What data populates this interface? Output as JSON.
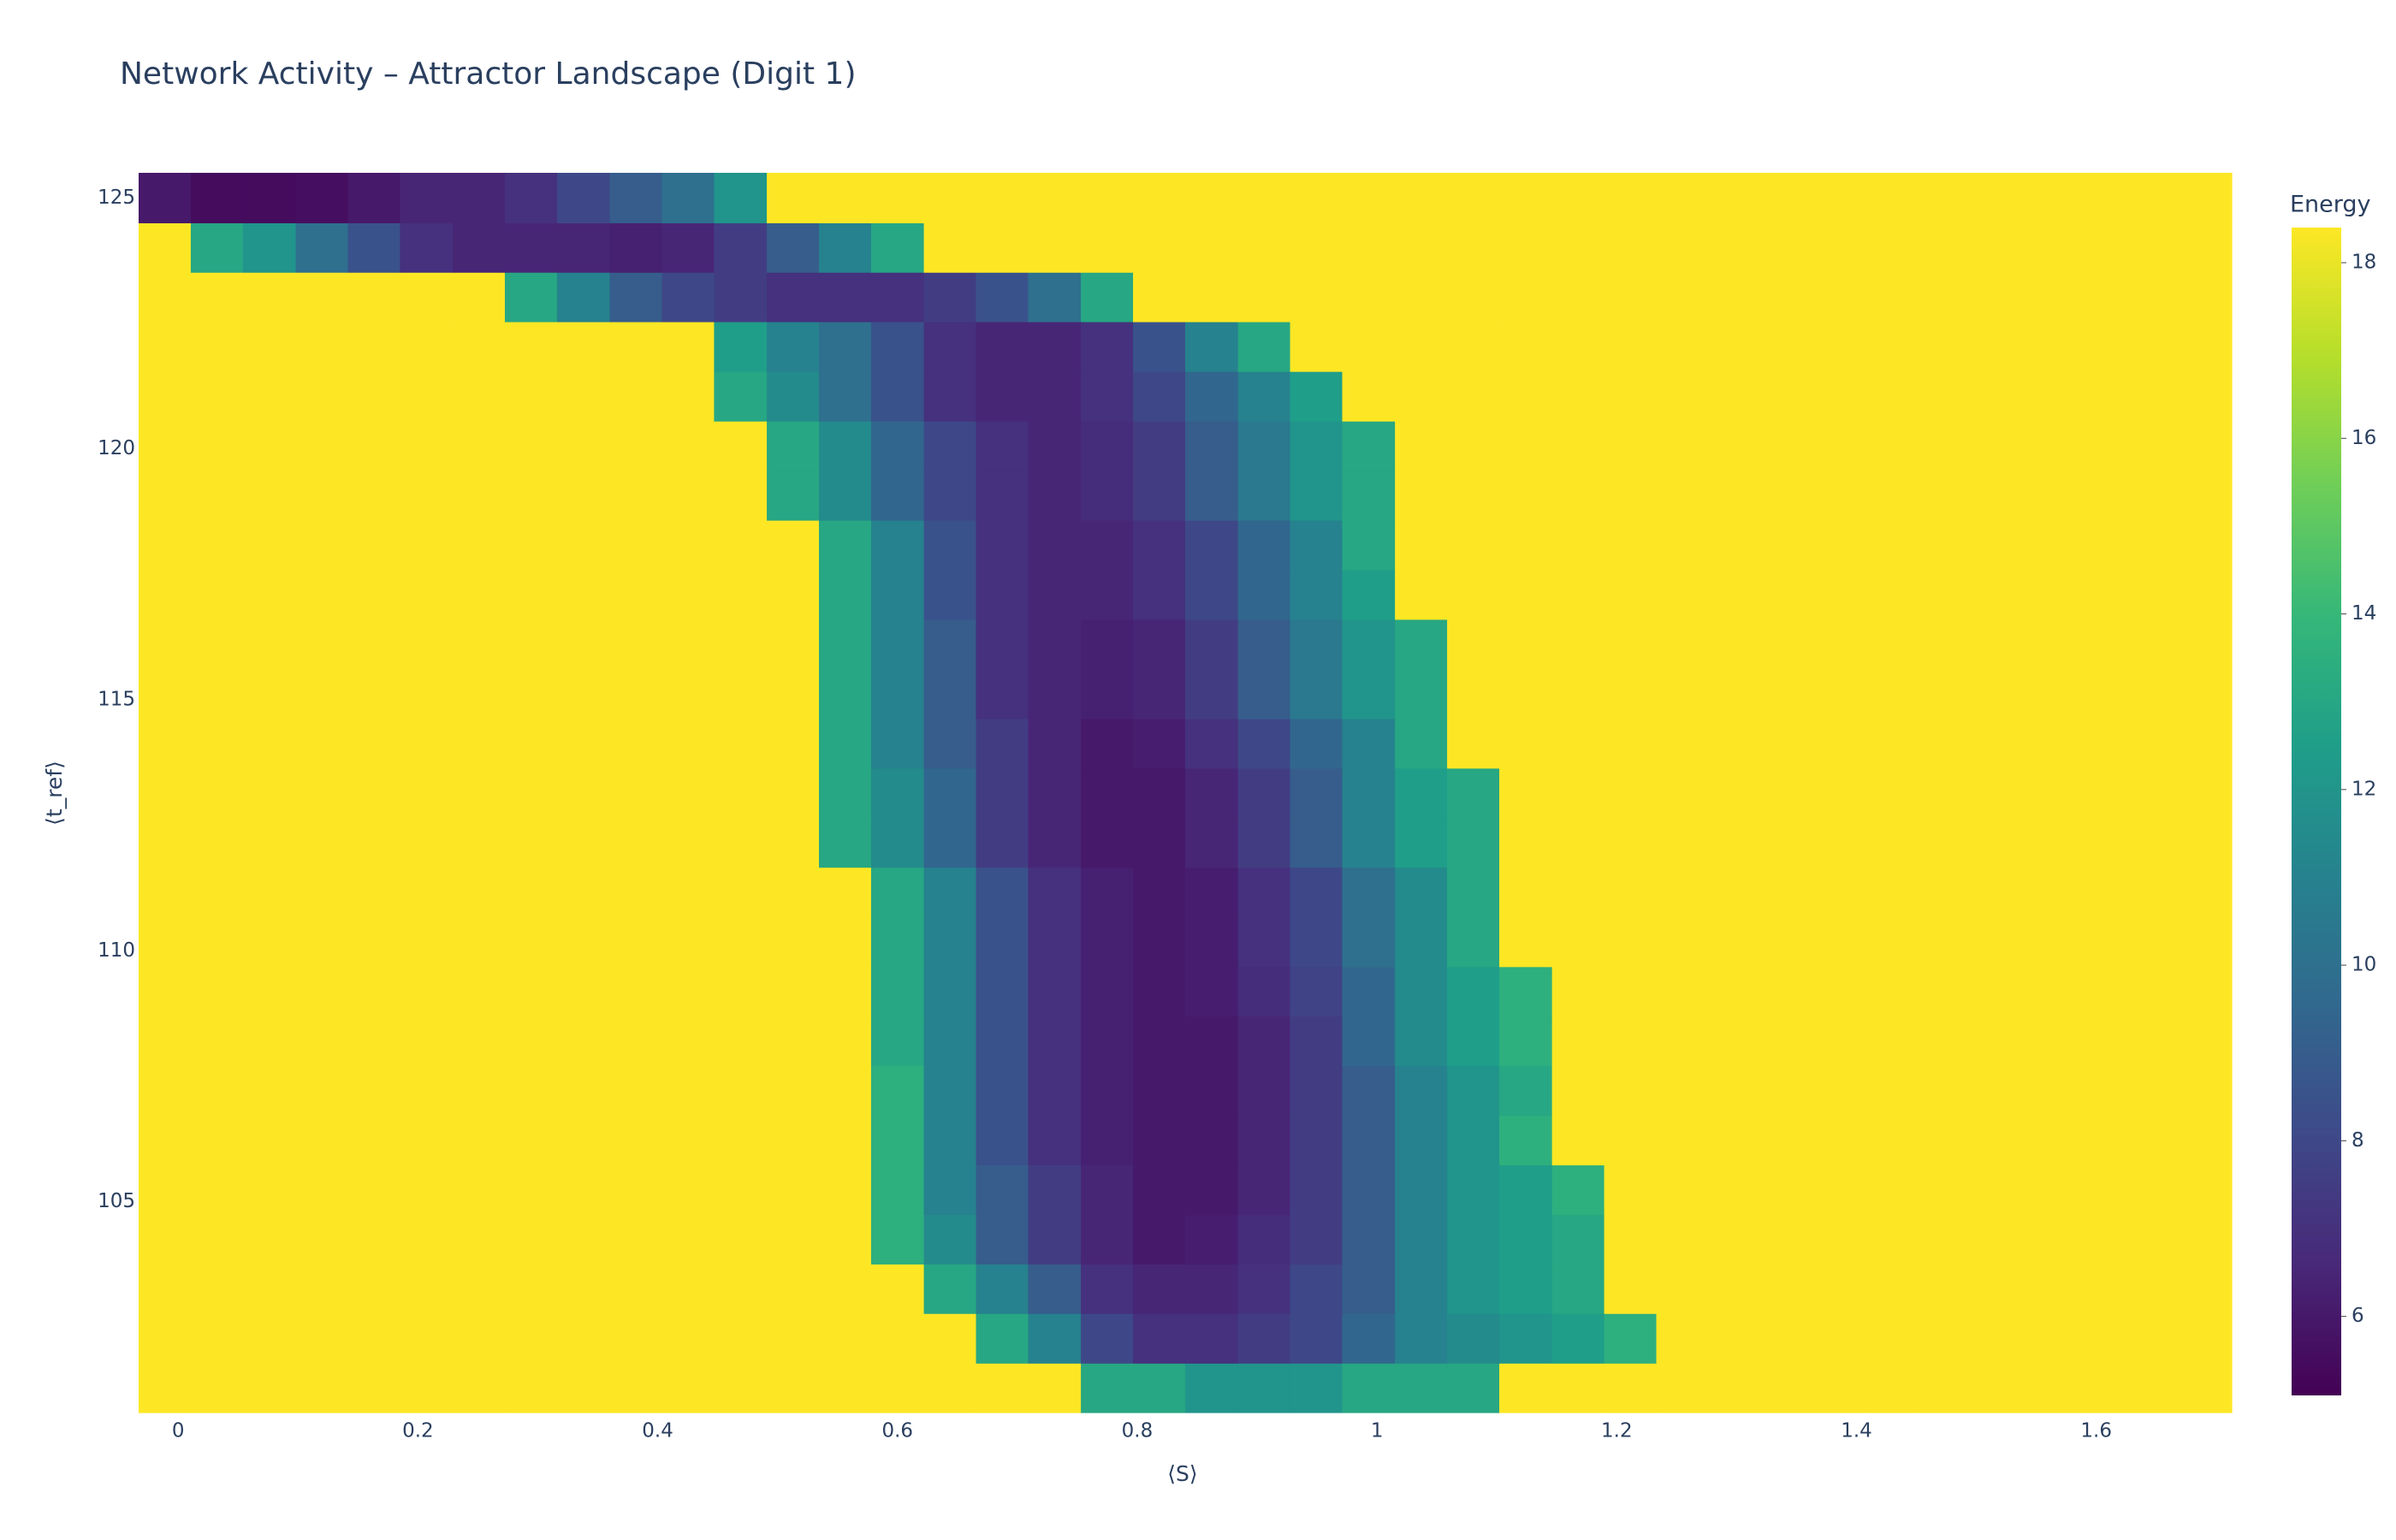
{
  "chart_data": {
    "type": "heatmap",
    "title": "Network Activity – Attractor Landscape (Digit 1)",
    "x_label": "⟨S⟩",
    "y_label": "⟨t_ref⟩",
    "colorbar_title": "Energy",
    "colorscale": "Viridis",
    "xlim": [
      -0.033,
      1.713
    ],
    "ylim": [
      100.8,
      125.5
    ],
    "xticks": [
      0,
      0.2,
      0.4,
      0.6,
      0.8,
      1,
      1.2,
      1.4,
      1.6
    ],
    "yticks": [
      105,
      110,
      115,
      120,
      125
    ],
    "zlim": [
      5.1,
      18.4
    ],
    "zticks": [
      6,
      8,
      10,
      12,
      14,
      16,
      18
    ],
    "x": [
      -0.011,
      0.032,
      0.076,
      0.12,
      0.163,
      0.207,
      0.251,
      0.294,
      0.338,
      0.382,
      0.425,
      0.469,
      0.513,
      0.556,
      0.6,
      0.644,
      0.687,
      0.731,
      0.775,
      0.818,
      0.862,
      0.906,
      0.949,
      0.993,
      1.037,
      1.08,
      1.124,
      1.168,
      1.211,
      1.255,
      1.299,
      1.342,
      1.386,
      1.43,
      1.473,
      1.517,
      1.561,
      1.604,
      1.648,
      1.692
    ],
    "y": [
      101.29,
      102.28,
      103.27,
      104.25,
      105.24,
      106.23,
      107.22,
      108.21,
      109.19,
      110.18,
      111.17,
      112.16,
      113.15,
      114.13,
      115.12,
      116.11,
      117.1,
      118.09,
      119.07,
      120.06,
      121.05,
      122.04,
      123.03,
      124.01,
      125.0
    ],
    "z": [
      [
        18.4,
        18.4,
        18.4,
        18.4,
        18.4,
        18.4,
        18.4,
        18.4,
        18.4,
        18.4,
        18.4,
        18.4,
        18.4,
        18.4,
        18.4,
        18.4,
        18.4,
        18.4,
        13,
        13,
        12,
        12,
        12,
        13,
        13,
        13,
        18.4,
        18.4,
        18.4,
        18.4,
        18.4,
        18.4,
        18.4,
        18.4,
        18.4,
        18.4,
        18.4,
        18.4,
        18.4,
        18.4
      ],
      [
        18.4,
        18.4,
        18.4,
        18.4,
        18.4,
        18.4,
        18.4,
        18.4,
        18.4,
        18.4,
        18.4,
        18.4,
        18.4,
        18.4,
        18.4,
        18.4,
        13,
        11,
        8,
        7,
        7,
        7.5,
        8,
        9.5,
        11,
        11.5,
        12,
        12.5,
        13.5,
        18.4,
        18.4,
        18.4,
        18.4,
        18.4,
        18.4,
        18.4,
        18.4,
        18.4,
        18.4,
        18.4
      ],
      [
        18.4,
        18.4,
        18.4,
        18.4,
        18.4,
        18.4,
        18.4,
        18.4,
        18.4,
        18.4,
        18.4,
        18.4,
        18.4,
        18.4,
        18.4,
        13,
        11,
        9,
        7,
        6.5,
        6.5,
        7,
        8,
        9,
        11,
        12,
        12.5,
        13,
        18.4,
        18.4,
        18.4,
        18.4,
        18.4,
        18.4,
        18.4,
        18.4,
        18.4,
        18.4,
        18.4,
        18.4
      ],
      [
        18.4,
        18.4,
        18.4,
        18.4,
        18.4,
        18.4,
        18.4,
        18.4,
        18.4,
        18.4,
        18.4,
        18.4,
        18.4,
        18.4,
        13.5,
        11.5,
        9,
        7.5,
        6.5,
        6,
        6.2,
        6.8,
        7.5,
        9,
        11,
        12,
        12.5,
        13,
        18.4,
        18.4,
        18.4,
        18.4,
        18.4,
        18.4,
        18.4,
        18.4,
        18.4,
        18.4,
        18.4,
        18.4
      ],
      [
        18.4,
        18.4,
        18.4,
        18.4,
        18.4,
        18.4,
        18.4,
        18.4,
        18.4,
        18.4,
        18.4,
        18.4,
        18.4,
        18.4,
        13.5,
        11,
        9,
        7.5,
        6.5,
        6,
        6,
        6.5,
        7.5,
        9,
        11,
        12,
        12.5,
        13.5,
        18.4,
        18.4,
        18.4,
        18.4,
        18.4,
        18.4,
        18.4,
        18.4,
        18.4,
        18.4,
        18.4,
        18.4
      ],
      [
        18.4,
        18.4,
        18.4,
        18.4,
        18.4,
        18.4,
        18.4,
        18.4,
        18.4,
        18.4,
        18.4,
        18.4,
        18.4,
        18.4,
        13.5,
        11,
        8.5,
        7,
        6.3,
        6,
        6,
        6.5,
        7.5,
        9,
        11,
        12,
        13.5,
        18.4,
        18.4,
        18.4,
        18.4,
        18.4,
        18.4,
        18.4,
        18.4,
        18.4,
        18.4,
        18.4,
        18.4,
        18.4
      ],
      [
        18.4,
        18.4,
        18.4,
        18.4,
        18.4,
        18.4,
        18.4,
        18.4,
        18.4,
        18.4,
        18.4,
        18.4,
        18.4,
        18.4,
        13.5,
        11,
        8.5,
        7,
        6.3,
        6,
        6,
        6.5,
        7.5,
        9,
        11,
        12,
        13,
        18.4,
        18.4,
        18.4,
        18.4,
        18.4,
        18.4,
        18.4,
        18.4,
        18.4,
        18.4,
        18.4,
        18.4,
        18.4
      ],
      [
        18.4,
        18.4,
        18.4,
        18.4,
        18.4,
        18.4,
        18.4,
        18.4,
        18.4,
        18.4,
        18.4,
        18.4,
        18.4,
        18.4,
        13,
        11,
        8.5,
        7,
        6.3,
        6,
        6,
        6.5,
        7.5,
        9.5,
        11.5,
        12.5,
        13.5,
        18.4,
        18.4,
        18.4,
        18.4,
        18.4,
        18.4,
        18.4,
        18.4,
        18.4,
        18.4,
        18.4,
        18.4,
        18.4
      ],
      [
        18.4,
        18.4,
        18.4,
        18.4,
        18.4,
        18.4,
        18.4,
        18.4,
        18.4,
        18.4,
        18.4,
        18.4,
        18.4,
        18.4,
        13,
        11,
        8.5,
        7,
        6.3,
        6,
        6.2,
        6.8,
        7.8,
        9.5,
        11.5,
        12.5,
        13.5,
        18.4,
        18.4,
        18.4,
        18.4,
        18.4,
        18.4,
        18.4,
        18.4,
        18.4,
        18.4,
        18.4,
        18.4,
        18.4
      ],
      [
        18.4,
        18.4,
        18.4,
        18.4,
        18.4,
        18.4,
        18.4,
        18.4,
        18.4,
        18.4,
        18.4,
        18.4,
        18.4,
        18.4,
        13,
        11,
        8.5,
        7,
        6.3,
        6,
        6.2,
        7,
        8,
        10,
        11.5,
        13,
        18.4,
        18.4,
        18.4,
        18.4,
        18.4,
        18.4,
        18.4,
        18.4,
        18.4,
        18.4,
        18.4,
        18.4,
        18.4,
        18.4
      ],
      [
        18.4,
        18.4,
        18.4,
        18.4,
        18.4,
        18.4,
        18.4,
        18.4,
        18.4,
        18.4,
        18.4,
        18.4,
        18.4,
        18.4,
        13,
        11,
        8.5,
        7,
        6.3,
        6,
        6.2,
        7,
        8,
        10,
        11.5,
        13,
        18.4,
        18.4,
        18.4,
        18.4,
        18.4,
        18.4,
        18.4,
        18.4,
        18.4,
        18.4,
        18.4,
        18.4,
        18.4,
        18.4
      ],
      [
        18.4,
        18.4,
        18.4,
        18.4,
        18.4,
        18.4,
        18.4,
        18.4,
        18.4,
        18.4,
        18.4,
        18.4,
        18.4,
        13,
        11.5,
        9.5,
        7.5,
        6.5,
        6,
        6,
        6.5,
        7.5,
        9,
        11,
        12.5,
        13,
        18.4,
        18.4,
        18.4,
        18.4,
        18.4,
        18.4,
        18.4,
        18.4,
        18.4,
        18.4,
        18.4,
        18.4,
        18.4,
        18.4
      ],
      [
        18.4,
        18.4,
        18.4,
        18.4,
        18.4,
        18.4,
        18.4,
        18.4,
        18.4,
        18.4,
        18.4,
        18.4,
        18.4,
        13,
        11.5,
        9.5,
        7.5,
        6.5,
        6,
        6,
        6.5,
        7.5,
        9,
        11,
        12.5,
        13,
        18.4,
        18.4,
        18.4,
        18.4,
        18.4,
        18.4,
        18.4,
        18.4,
        18.4,
        18.4,
        18.4,
        18.4,
        18.4,
        18.4
      ],
      [
        18.4,
        18.4,
        18.4,
        18.4,
        18.4,
        18.4,
        18.4,
        18.4,
        18.4,
        18.4,
        18.4,
        18.4,
        18.4,
        13,
        11,
        9,
        7.5,
        6.5,
        6,
        6.2,
        7,
        8,
        9.5,
        11,
        13,
        18.4,
        18.4,
        18.4,
        18.4,
        18.4,
        18.4,
        18.4,
        18.4,
        18.4,
        18.4,
        18.4,
        18.4,
        18.4,
        18.4,
        18.4
      ],
      [
        18.4,
        18.4,
        18.4,
        18.4,
        18.4,
        18.4,
        18.4,
        18.4,
        18.4,
        18.4,
        18.4,
        18.4,
        18.4,
        13,
        11,
        9,
        7,
        6.5,
        6.3,
        6.5,
        7.5,
        9,
        10.5,
        12,
        13,
        18.4,
        18.4,
        18.4,
        18.4,
        18.4,
        18.4,
        18.4,
        18.4,
        18.4,
        18.4,
        18.4,
        18.4,
        18.4,
        18.4,
        18.4
      ],
      [
        18.4,
        18.4,
        18.4,
        18.4,
        18.4,
        18.4,
        18.4,
        18.4,
        18.4,
        18.4,
        18.4,
        18.4,
        18.4,
        13,
        11,
        9,
        7,
        6.5,
        6.3,
        6.5,
        7.5,
        9,
        10.5,
        12,
        13,
        18.4,
        18.4,
        18.4,
        18.4,
        18.4,
        18.4,
        18.4,
        18.4,
        18.4,
        18.4,
        18.4,
        18.4,
        18.4,
        18.4,
        18.4
      ],
      [
        18.4,
        18.4,
        18.4,
        18.4,
        18.4,
        18.4,
        18.4,
        18.4,
        18.4,
        18.4,
        18.4,
        18.4,
        18.4,
        13,
        11,
        8.5,
        7,
        6.5,
        6.5,
        7,
        8,
        9.5,
        11,
        12.5,
        18.4,
        18.4,
        18.4,
        18.4,
        18.4,
        18.4,
        18.4,
        18.4,
        18.4,
        18.4,
        18.4,
        18.4,
        18.4,
        18.4,
        18.4,
        18.4
      ],
      [
        18.4,
        18.4,
        18.4,
        18.4,
        18.4,
        18.4,
        18.4,
        18.4,
        18.4,
        18.4,
        18.4,
        18.4,
        18.4,
        13,
        11,
        8.5,
        7,
        6.5,
        6.5,
        7,
        8,
        9.5,
        11,
        13,
        18.4,
        18.4,
        18.4,
        18.4,
        18.4,
        18.4,
        18.4,
        18.4,
        18.4,
        18.4,
        18.4,
        18.4,
        18.4,
        18.4,
        18.4,
        18.4
      ],
      [
        18.4,
        18.4,
        18.4,
        18.4,
        18.4,
        18.4,
        18.4,
        18.4,
        18.4,
        18.4,
        18.4,
        18.4,
        13,
        11.5,
        9.5,
        8,
        7,
        6.5,
        6.8,
        7.5,
        9,
        10.5,
        12,
        13,
        18.4,
        18.4,
        18.4,
        18.4,
        18.4,
        18.4,
        18.4,
        18.4,
        18.4,
        18.4,
        18.4,
        18.4,
        18.4,
        18.4,
        18.4,
        18.4
      ],
      [
        18.4,
        18.4,
        18.4,
        18.4,
        18.4,
        18.4,
        18.4,
        18.4,
        18.4,
        18.4,
        18.4,
        18.4,
        13,
        11.5,
        9.5,
        8,
        7,
        6.5,
        6.8,
        7.5,
        9,
        10.5,
        12,
        13,
        18.4,
        18.4,
        18.4,
        18.4,
        18.4,
        18.4,
        18.4,
        18.4,
        18.4,
        18.4,
        18.4,
        18.4,
        18.4,
        18.4,
        18.4,
        18.4
      ],
      [
        18.4,
        18.4,
        18.4,
        18.4,
        18.4,
        18.4,
        18.4,
        18.4,
        18.4,
        18.4,
        18.4,
        13,
        11.5,
        10,
        8.5,
        7,
        6.5,
        6.5,
        7,
        8,
        9.5,
        11,
        12.5,
        18.4,
        18.4,
        18.4,
        18.4,
        18.4,
        18.4,
        18.4,
        18.4,
        18.4,
        18.4,
        18.4,
        18.4,
        18.4,
        18.4,
        18.4,
        18.4,
        18.4
      ],
      [
        18.4,
        18.4,
        18.4,
        18.4,
        18.4,
        18.4,
        18.4,
        18.4,
        18.4,
        18.4,
        18.4,
        12.5,
        11,
        10,
        8.5,
        7,
        6.5,
        6.5,
        7,
        8.5,
        11,
        13,
        18.4,
        18.4,
        18.4,
        18.4,
        18.4,
        18.4,
        18.4,
        18.4,
        18.4,
        18.4,
        18.4,
        18.4,
        18.4,
        18.4,
        18.4,
        18.4,
        18.4,
        18.4
      ],
      [
        18.4,
        18.4,
        18.4,
        18.4,
        18.4,
        18.4,
        18.4,
        13,
        11,
        9,
        8,
        7.5,
        7,
        7,
        7,
        7.5,
        8.5,
        10,
        13,
        18.4,
        18.4,
        18.4,
        18.4,
        18.4,
        18.4,
        18.4,
        18.4,
        18.4,
        18.4,
        18.4,
        18.4,
        18.4,
        18.4,
        18.4,
        18.4,
        18.4,
        18.4,
        18.4,
        18.4,
        18.4
      ],
      [
        18.4,
        13,
        12,
        10,
        8.5,
        7,
        6.5,
        6.5,
        6.5,
        6.3,
        6.5,
        7.5,
        9,
        11,
        13,
        18.4,
        18.4,
        18.4,
        18.4,
        18.4,
        18.4,
        18.4,
        18.4,
        18.4,
        18.4,
        18.4,
        18.4,
        18.4,
        18.4,
        18.4,
        18.4,
        18.4,
        18.4,
        18.4,
        18.4,
        18.4,
        18.4,
        18.4,
        18.4,
        18.4
      ],
      [
        6,
        5.5,
        5.5,
        5.6,
        6,
        6.5,
        6.5,
        7,
        8,
        9,
        10,
        12,
        18.4,
        18.4,
        18.4,
        18.4,
        18.4,
        18.4,
        18.4,
        18.4,
        18.4,
        18.4,
        18.4,
        18.4,
        18.4,
        18.4,
        18.4,
        18.4,
        18.4,
        18.4,
        18.4,
        18.4,
        18.4,
        18.4,
        18.4,
        18.4,
        18.4,
        18.4,
        18.4,
        18.4
      ]
    ]
  }
}
